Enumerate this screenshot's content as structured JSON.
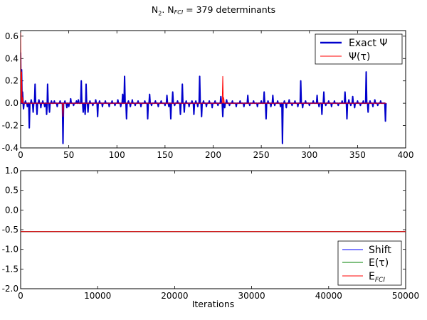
{
  "title": {
    "molecule": "N",
    "molecule_sub": "2",
    "sep": ". N",
    "fci_sub": "FCI",
    "rest": " = 379 determinants"
  },
  "chart_data": [
    {
      "type": "line",
      "xlim": [
        0,
        400
      ],
      "ylim": [
        -0.4,
        0.65
      ],
      "xticks": [
        "0",
        "50",
        "100",
        "150",
        "200",
        "250",
        "300",
        "350",
        "400"
      ],
      "yticks": [
        "-0.4",
        "-0.2",
        "0.0",
        "0.2",
        "0.4",
        "0.6"
      ],
      "legend_position": "top-right",
      "series": [
        {
          "name": "Exact Ψ",
          "color": "#0000cc",
          "spikes": [
            [
              0,
              0.45
            ],
            [
              1,
              0.3
            ],
            [
              2,
              0.1
            ],
            [
              3,
              -0.05
            ],
            [
              5,
              0.02
            ],
            [
              7,
              -0.03
            ],
            [
              9,
              -0.22
            ],
            [
              11,
              0.03
            ],
            [
              13,
              -0.08
            ],
            [
              15,
              0.17
            ],
            [
              17,
              -0.1
            ],
            [
              19,
              0.03
            ],
            [
              21,
              -0.04
            ],
            [
              23,
              0.02
            ],
            [
              25,
              -0.03
            ],
            [
              27,
              -0.1
            ],
            [
              28,
              0.17
            ],
            [
              30,
              -0.08
            ],
            [
              32,
              0.02
            ],
            [
              35,
              0.02
            ],
            [
              38,
              -0.03
            ],
            [
              41,
              0.02
            ],
            [
              44,
              -0.36
            ],
            [
              46,
              0.02
            ],
            [
              48,
              -0.04
            ],
            [
              50,
              -0.03
            ],
            [
              52,
              0.04
            ],
            [
              55,
              -0.02
            ],
            [
              58,
              0.02
            ],
            [
              60,
              0.03
            ],
            [
              63,
              0.2
            ],
            [
              65,
              -0.08
            ],
            [
              67,
              -0.1
            ],
            [
              68,
              0.17
            ],
            [
              70,
              -0.08
            ],
            [
              72,
              0.02
            ],
            [
              75,
              -0.02
            ],
            [
              78,
              0.03
            ],
            [
              80,
              -0.12
            ],
            [
              82,
              0.02
            ],
            [
              85,
              -0.03
            ],
            [
              88,
              0.02
            ],
            [
              92,
              -0.03
            ],
            [
              95,
              0.02
            ],
            [
              98,
              -0.02
            ],
            [
              101,
              0.03
            ],
            [
              104,
              -0.03
            ],
            [
              106,
              0.08
            ],
            [
              108,
              0.24
            ],
            [
              110,
              -0.14
            ],
            [
              112,
              0.02
            ],
            [
              114,
              -0.03
            ],
            [
              116,
              0.03
            ],
            [
              119,
              -0.02
            ],
            [
              122,
              0.02
            ],
            [
              125,
              -0.03
            ],
            [
              129,
              0.02
            ],
            [
              132,
              -0.14
            ],
            [
              134,
              0.08
            ],
            [
              136,
              -0.02
            ],
            [
              140,
              0.02
            ],
            [
              143,
              -0.03
            ],
            [
              146,
              0.02
            ],
            [
              150,
              -0.02
            ],
            [
              152,
              0.07
            ],
            [
              154,
              -0.03
            ],
            [
              156,
              -0.14
            ],
            [
              158,
              0.1
            ],
            [
              160,
              -0.02
            ],
            [
              163,
              0.02
            ],
            [
              166,
              -0.1
            ],
            [
              168,
              0.17
            ],
            [
              170,
              -0.08
            ],
            [
              172,
              0.02
            ],
            [
              175,
              -0.03
            ],
            [
              178,
              0.02
            ],
            [
              180,
              -0.1
            ],
            [
              182,
              0.02
            ],
            [
              184,
              -0.03
            ],
            [
              186,
              0.24
            ],
            [
              188,
              -0.12
            ],
            [
              190,
              0.02
            ],
            [
              193,
              -0.03
            ],
            [
              196,
              0.02
            ],
            [
              199,
              -0.04
            ],
            [
              202,
              0.02
            ],
            [
              205,
              -0.02
            ],
            [
              208,
              0.06
            ],
            [
              210,
              -0.12
            ],
            [
              212,
              -0.04
            ],
            [
              214,
              0.03
            ],
            [
              217,
              -0.02
            ],
            [
              220,
              0.02
            ],
            [
              224,
              -0.03
            ],
            [
              228,
              0.02
            ],
            [
              232,
              -0.03
            ],
            [
              236,
              0.07
            ],
            [
              238,
              -0.02
            ],
            [
              242,
              0.02
            ],
            [
              246,
              -0.03
            ],
            [
              250,
              0.02
            ],
            [
              253,
              0.1
            ],
            [
              255,
              -0.14
            ],
            [
              257,
              0.02
            ],
            [
              260,
              -0.03
            ],
            [
              262,
              0.07
            ],
            [
              264,
              -0.02
            ],
            [
              267,
              0.02
            ],
            [
              270,
              -0.03
            ],
            [
              272,
              -0.36
            ],
            [
              274,
              0.02
            ],
            [
              276,
              -0.04
            ],
            [
              279,
              0.03
            ],
            [
              282,
              -0.02
            ],
            [
              285,
              0.02
            ],
            [
              288,
              -0.03
            ],
            [
              291,
              0.2
            ],
            [
              293,
              -0.04
            ],
            [
              296,
              0.02
            ],
            [
              300,
              -0.02
            ],
            [
              304,
              0.02
            ],
            [
              308,
              0.07
            ],
            [
              310,
              -0.03
            ],
            [
              313,
              -0.1
            ],
            [
              315,
              0.1
            ],
            [
              317,
              -0.02
            ],
            [
              320,
              0.02
            ],
            [
              323,
              -0.03
            ],
            [
              326,
              0.02
            ],
            [
              330,
              -0.02
            ],
            [
              334,
              0.02
            ],
            [
              337,
              0.1
            ],
            [
              339,
              -0.14
            ],
            [
              341,
              0.03
            ],
            [
              343,
              -0.02
            ],
            [
              345,
              0.06
            ],
            [
              347,
              -0.04
            ],
            [
              350,
              0.02
            ],
            [
              353,
              -0.02
            ],
            [
              356,
              0.02
            ],
            [
              359,
              0.28
            ],
            [
              361,
              -0.08
            ],
            [
              363,
              0.02
            ],
            [
              366,
              -0.03
            ],
            [
              368,
              0.03
            ],
            [
              371,
              -0.02
            ],
            [
              374,
              0.02
            ],
            [
              377,
              0.0
            ],
            [
              379,
              -0.16
            ]
          ]
        },
        {
          "name": "Ψ(τ)",
          "color": "#ff0000",
          "spikes": [
            [
              0,
              0.63
            ],
            [
              1,
              0.28
            ],
            [
              2,
              0.05
            ],
            [
              3,
              0.0
            ],
            [
              44,
              -0.12
            ],
            [
              210,
              0.24
            ],
            [
              211,
              0.05
            ],
            [
              212,
              0.0
            ],
            [
              379,
              0.0
            ]
          ]
        }
      ]
    },
    {
      "type": "line",
      "xlim": [
        0,
        50000
      ],
      "ylim": [
        -2.0,
        1.0
      ],
      "xlabel": "Iterations",
      "xticks": [
        "0",
        "10000",
        "20000",
        "30000",
        "40000",
        "50000"
      ],
      "yticks": [
        "-2.0",
        "-1.5",
        "-1.0",
        "-0.5",
        "0.0",
        "0.5",
        "1.0"
      ],
      "legend_position": "bottom-right",
      "series": [
        {
          "name": "Shift",
          "color": "#0000ff",
          "x": [
            0,
            50000
          ],
          "y": [
            -0.55,
            -0.55
          ]
        },
        {
          "name": "E(τ)",
          "color": "#008000",
          "x": [
            0,
            50000
          ],
          "y": [
            -0.55,
            -0.55
          ]
        },
        {
          "name": "E",
          "name_sub": "FCI",
          "color": "#ff0000",
          "x": [
            0,
            50000
          ],
          "y": [
            -0.55,
            -0.55
          ]
        }
      ]
    }
  ]
}
